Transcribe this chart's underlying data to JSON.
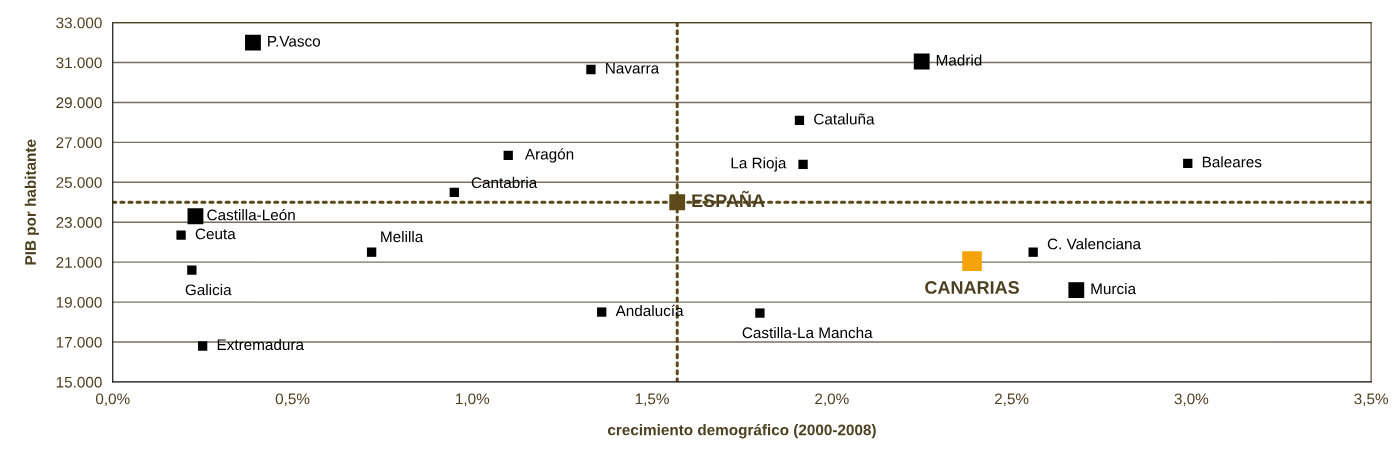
{
  "chart_data": {
    "type": "scatter",
    "xlabel": "crecimiento demográfico (2000-2008)",
    "ylabel": "PIB por habitante",
    "xlim": [
      0,
      3.5
    ],
    "ylim": [
      15000,
      33000
    ],
    "xticks": [
      {
        "value": 0,
        "label": "0,0%"
      },
      {
        "value": 0.5,
        "label": "0,5%"
      },
      {
        "value": 1.0,
        "label": "1,0%"
      },
      {
        "value": 1.5,
        "label": "1,5%"
      },
      {
        "value": 2.0,
        "label": "2,0%"
      },
      {
        "value": 2.5,
        "label": "2,5%"
      },
      {
        "value": 3.0,
        "label": "3,0%"
      },
      {
        "value": 3.5,
        "label": "3,5%"
      }
    ],
    "yticks": [
      {
        "value": 15000,
        "label": "15.000"
      },
      {
        "value": 17000,
        "label": "17.000"
      },
      {
        "value": 19000,
        "label": "19.000"
      },
      {
        "value": 21000,
        "label": "21.000"
      },
      {
        "value": 23000,
        "label": "23.000"
      },
      {
        "value": 25000,
        "label": "25.000"
      },
      {
        "value": 27000,
        "label": "27.000"
      },
      {
        "value": 29000,
        "label": "29.000"
      },
      {
        "value": 31000,
        "label": "31.000"
      },
      {
        "value": 33000,
        "label": "33.000"
      }
    ],
    "grid": "y",
    "marker": "square",
    "series": [
      {
        "color": "#000000",
        "x": [
          1.33,
          1.1,
          0.95,
          0.19,
          0.22,
          0.72,
          1.36,
          0.25,
          1.91,
          1.92,
          2.99,
          2.56,
          1.8
        ],
        "values": [
          30650,
          26350,
          24500,
          22350,
          20600,
          21500,
          18500,
          16800,
          28100,
          25900,
          25950,
          21500,
          18450
        ]
      },
      {
        "color": "#000000",
        "x": [
          0.39,
          0.23,
          2.25,
          2.68
        ],
        "values": [
          32000,
          23300,
          31050,
          19600
        ]
      },
      {
        "name": "ESPAÑA",
        "color": "#5c4a1a",
        "x": [
          1.57
        ],
        "values": [
          24000
        ]
      },
      {
        "name": "CANARIAS",
        "color": "#f5a30a",
        "x": [
          2.39
        ],
        "values": [
          21050
        ]
      }
    ],
    "annotations": [
      {
        "text": "Navarra",
        "x": 1.33,
        "y": 30650
      },
      {
        "text": "Aragón",
        "x": 1.1,
        "y": 26350
      },
      {
        "text": "Cantabria",
        "x": 0.95,
        "y": 24500
      },
      {
        "text": "Ceuta",
        "x": 0.19,
        "y": 22350
      },
      {
        "text": "Galicia",
        "x": 0.22,
        "y": 20600
      },
      {
        "text": "Melilla",
        "x": 0.72,
        "y": 21500
      },
      {
        "text": "Andalucía",
        "x": 1.36,
        "y": 18500
      },
      {
        "text": "Extremadura",
        "x": 0.25,
        "y": 16800
      },
      {
        "text": "Cataluña",
        "x": 1.91,
        "y": 28100
      },
      {
        "text": "La Rioja",
        "x": 1.92,
        "y": 25900
      },
      {
        "text": "Baleares",
        "x": 2.99,
        "y": 25950
      },
      {
        "text": "C. Valenciana",
        "x": 2.56,
        "y": 21500
      },
      {
        "text": "Castilla-La Mancha",
        "x": 1.8,
        "y": 18450
      },
      {
        "text": "P.Vasco",
        "x": 0.39,
        "y": 32000
      },
      {
        "text": "Castilla-León",
        "x": 0.23,
        "y": 23300
      },
      {
        "text": "Madrid",
        "x": 2.25,
        "y": 31050
      },
      {
        "text": "Murcia",
        "x": 2.68,
        "y": 19600
      }
    ],
    "ref_lines": [
      {
        "axis": "x",
        "value": 1.57,
        "color": "#5c4a1a",
        "line_style": "dotted"
      },
      {
        "axis": "y",
        "value": 24000,
        "color": "#5c4a1a",
        "line_style": "dotted"
      }
    ],
    "legend": false
  }
}
